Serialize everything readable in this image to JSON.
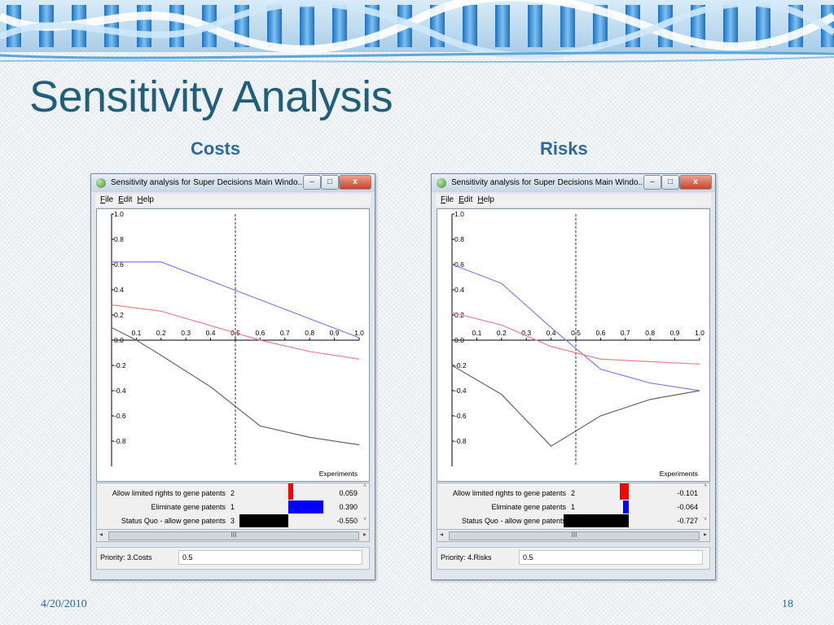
{
  "slide": {
    "title": "Sensitivity Analysis",
    "date": "4/20/2010",
    "page_number": "18"
  },
  "window_title": "Sensitivity analysis for Super Decisions Main Windo...",
  "menu": [
    "File",
    "Edit",
    "Help"
  ],
  "scroll_glyphs": {
    "left": "◂",
    "right": "▸",
    "thumb": "III",
    "up": "˄",
    "down": "˅"
  },
  "window_buttons": {
    "min": "–",
    "max": "□",
    "close": "x"
  },
  "colors": {
    "alt1": "#7f7ff0",
    "alt2": "#ee8080",
    "alt3": "#666666",
    "bar_red": "#ff0000",
    "bar_blue": "#0000ff",
    "bar_black": "#000000"
  },
  "chart_data": [
    {
      "label": "Costs",
      "type": "line",
      "xlabel": "Experiments",
      "xlim": [
        0.0,
        1.0
      ],
      "ylim": [
        -1.0,
        1.0
      ],
      "x_ticks": [
        "0.1",
        "0.2",
        "0.3",
        "0.4",
        "0.5",
        "0.6",
        "0.7",
        "0.8",
        "0.9",
        "1.0"
      ],
      "y_ticks_pos": [
        "0.2",
        "0.4",
        "0.6",
        "0.8",
        "1.0"
      ],
      "y_ticks_neg": [
        "0.0",
        "-0.2",
        "-0.4",
        "-0.6",
        "-0.8"
      ],
      "marker_x": 0.5,
      "series": [
        {
          "color": "#7f7ff0",
          "x": [
            0.0,
            0.2,
            0.6,
            1.0
          ],
          "y": [
            0.62,
            0.62,
            0.32,
            0.02
          ]
        },
        {
          "color": "#ee8080",
          "x": [
            0.0,
            0.2,
            0.6,
            0.8,
            1.0
          ],
          "y": [
            0.28,
            0.23,
            0.0,
            -0.09,
            -0.15
          ]
        },
        {
          "color": "#666666",
          "x": [
            0.0,
            0.1,
            0.2,
            0.4,
            0.6,
            0.8,
            1.0
          ],
          "y": [
            0.1,
            0.0,
            -0.12,
            -0.37,
            -0.68,
            -0.77,
            -0.83
          ]
        }
      ],
      "legend": [
        {
          "name": "Allow limited rights to gene patents",
          "num": "2",
          "value": "0.059"
        },
        {
          "name": "Eliminate gene patents",
          "num": "1",
          "value": "0.390"
        },
        {
          "name": "Status Quo - allow gene patents",
          "num": "3",
          "value": "-0.550"
        }
      ],
      "priority_label": "Priority: 3.Costs",
      "priority_value": "0.5"
    },
    {
      "label": "Risks",
      "type": "line",
      "xlabel": "Experiments",
      "xlim": [
        0.0,
        1.0
      ],
      "ylim": [
        -1.0,
        1.0
      ],
      "x_ticks": [
        "0.1",
        "0.2",
        "0.3",
        "0.4",
        "0.5",
        "0.6",
        "0.7",
        "0.8",
        "0.9",
        "1.0"
      ],
      "y_ticks_pos": [
        "0.2",
        "0.4",
        "0.6",
        "0.8",
        "1.0"
      ],
      "y_ticks_neg": [
        "0.0",
        "-0.2",
        "-0.4",
        "-0.6",
        "-0.8"
      ],
      "marker_x": 0.5,
      "series": [
        {
          "color": "#7f7ff0",
          "x": [
            0.0,
            0.2,
            0.4,
            0.6,
            0.8,
            1.0
          ],
          "y": [
            0.6,
            0.45,
            0.1,
            -0.23,
            -0.34,
            -0.4
          ]
        },
        {
          "color": "#ee8080",
          "x": [
            0.0,
            0.2,
            0.4,
            0.6,
            0.8,
            1.0
          ],
          "y": [
            0.22,
            0.12,
            -0.05,
            -0.15,
            -0.17,
            -0.19
          ]
        },
        {
          "color": "#666666",
          "x": [
            0.0,
            0.2,
            0.4,
            0.6,
            0.8,
            1.0
          ],
          "y": [
            -0.2,
            -0.43,
            -0.84,
            -0.6,
            -0.47,
            -0.4
          ]
        }
      ],
      "legend": [
        {
          "name": "Allow limited rights to gene patents",
          "num": "2",
          "value": "-0.101"
        },
        {
          "name": "Eliminate gene patents",
          "num": "1",
          "value": "-0.064"
        },
        {
          "name": "Status Quo - allow gene patents",
          "num": "3",
          "value": "-0.727"
        }
      ],
      "priority_label": "Priority: 4.Risks",
      "priority_value": "0.5"
    }
  ]
}
